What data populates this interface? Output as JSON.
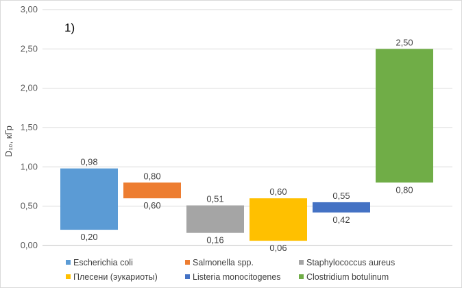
{
  "chart_data": {
    "type": "bar",
    "subtype": "floating-range",
    "panel_label": "1)",
    "ylabel": "D₁₀, кГр",
    "ylim": [
      0,
      3
    ],
    "yticks": [
      "0,00",
      "0,50",
      "1,00",
      "1,50",
      "2,00",
      "2,50",
      "3,00"
    ],
    "grid": true,
    "legend_position": "bottom",
    "series": [
      {
        "name": "Escherichia coli",
        "low": 0.2,
        "high": 0.98,
        "low_label": "0,20",
        "high_label": "0,98",
        "color": "#5B9BD5"
      },
      {
        "name": "Salmonella spp.",
        "low": 0.6,
        "high": 0.8,
        "low_label": "0,60",
        "high_label": "0,80",
        "color": "#ED7D31"
      },
      {
        "name": "Staphylococcus aureus",
        "low": 0.16,
        "high": 0.51,
        "low_label": "0,16",
        "high_label": "0,51",
        "color": "#A5A5A5"
      },
      {
        "name": "Плесени (эукариоты)",
        "low": 0.06,
        "high": 0.6,
        "low_label": "0,06",
        "high_label": "0,60",
        "color": "#FFC000"
      },
      {
        "name": "Listeria monocitogenes",
        "low": 0.42,
        "high": 0.55,
        "low_label": "0,42",
        "high_label": "0,55",
        "color": "#4472C4"
      },
      {
        "name": "Clostridium botulinum",
        "low": 0.8,
        "high": 2.5,
        "low_label": "0,80",
        "high_label": "2,50",
        "color": "#70AD47"
      }
    ]
  }
}
